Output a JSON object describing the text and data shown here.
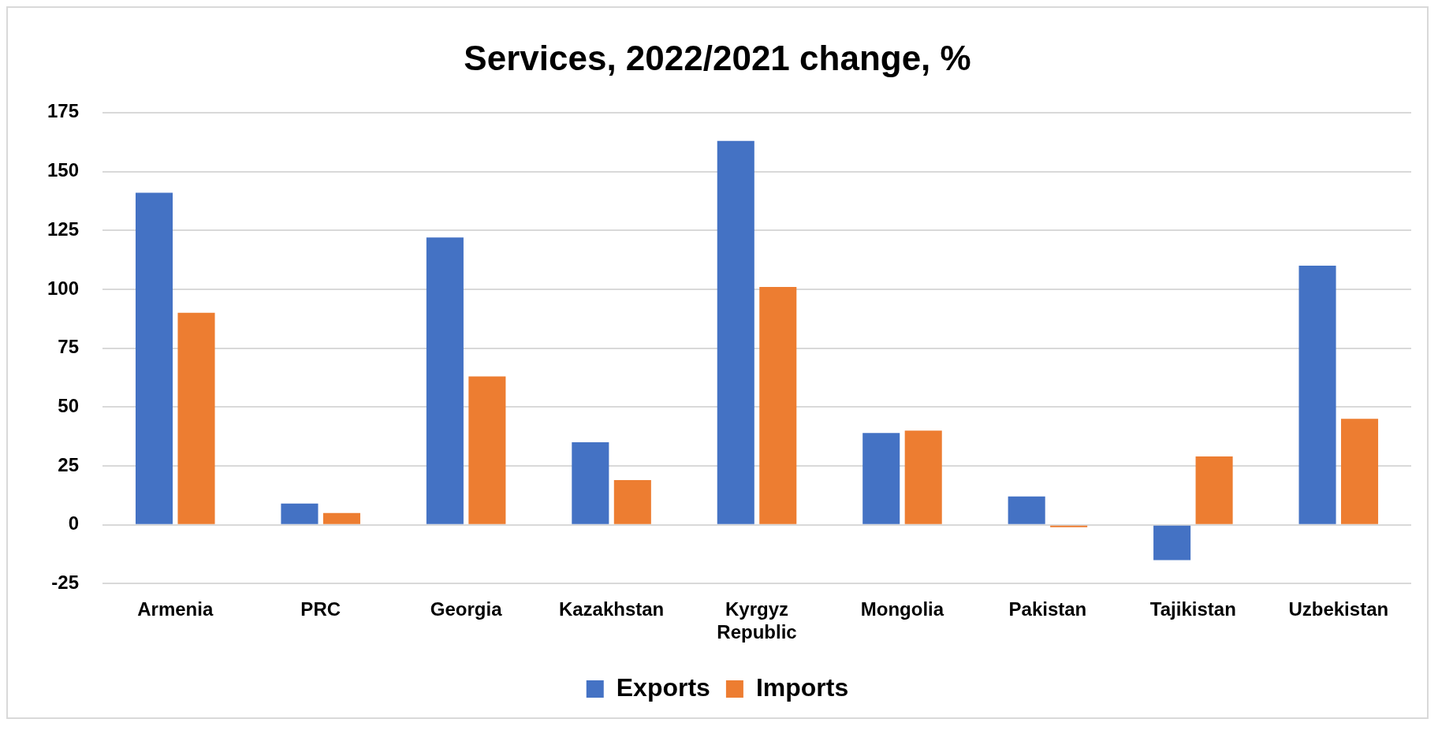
{
  "chart_data": {
    "type": "bar",
    "title": "Services, 2022/2021 change, %",
    "categories": [
      "Armenia",
      "PRC",
      "Georgia",
      "Kazakhstan",
      "Kyrgyz Republic",
      "Mongolia",
      "Pakistan",
      "Tajikistan",
      "Uzbekistan"
    ],
    "series": [
      {
        "name": "Exports",
        "color": "#4472c4",
        "values": [
          141,
          9,
          122,
          35,
          163,
          39,
          12,
          -15,
          110
        ]
      },
      {
        "name": "Imports",
        "color": "#ed7d31",
        "values": [
          90,
          5,
          63,
          19,
          101,
          40,
          -1,
          29,
          45
        ]
      }
    ],
    "ylim": [
      -25,
      175
    ],
    "yticks": [
      -25,
      0,
      25,
      50,
      75,
      100,
      125,
      150,
      175
    ],
    "grid": "y",
    "legend": "bottom"
  }
}
